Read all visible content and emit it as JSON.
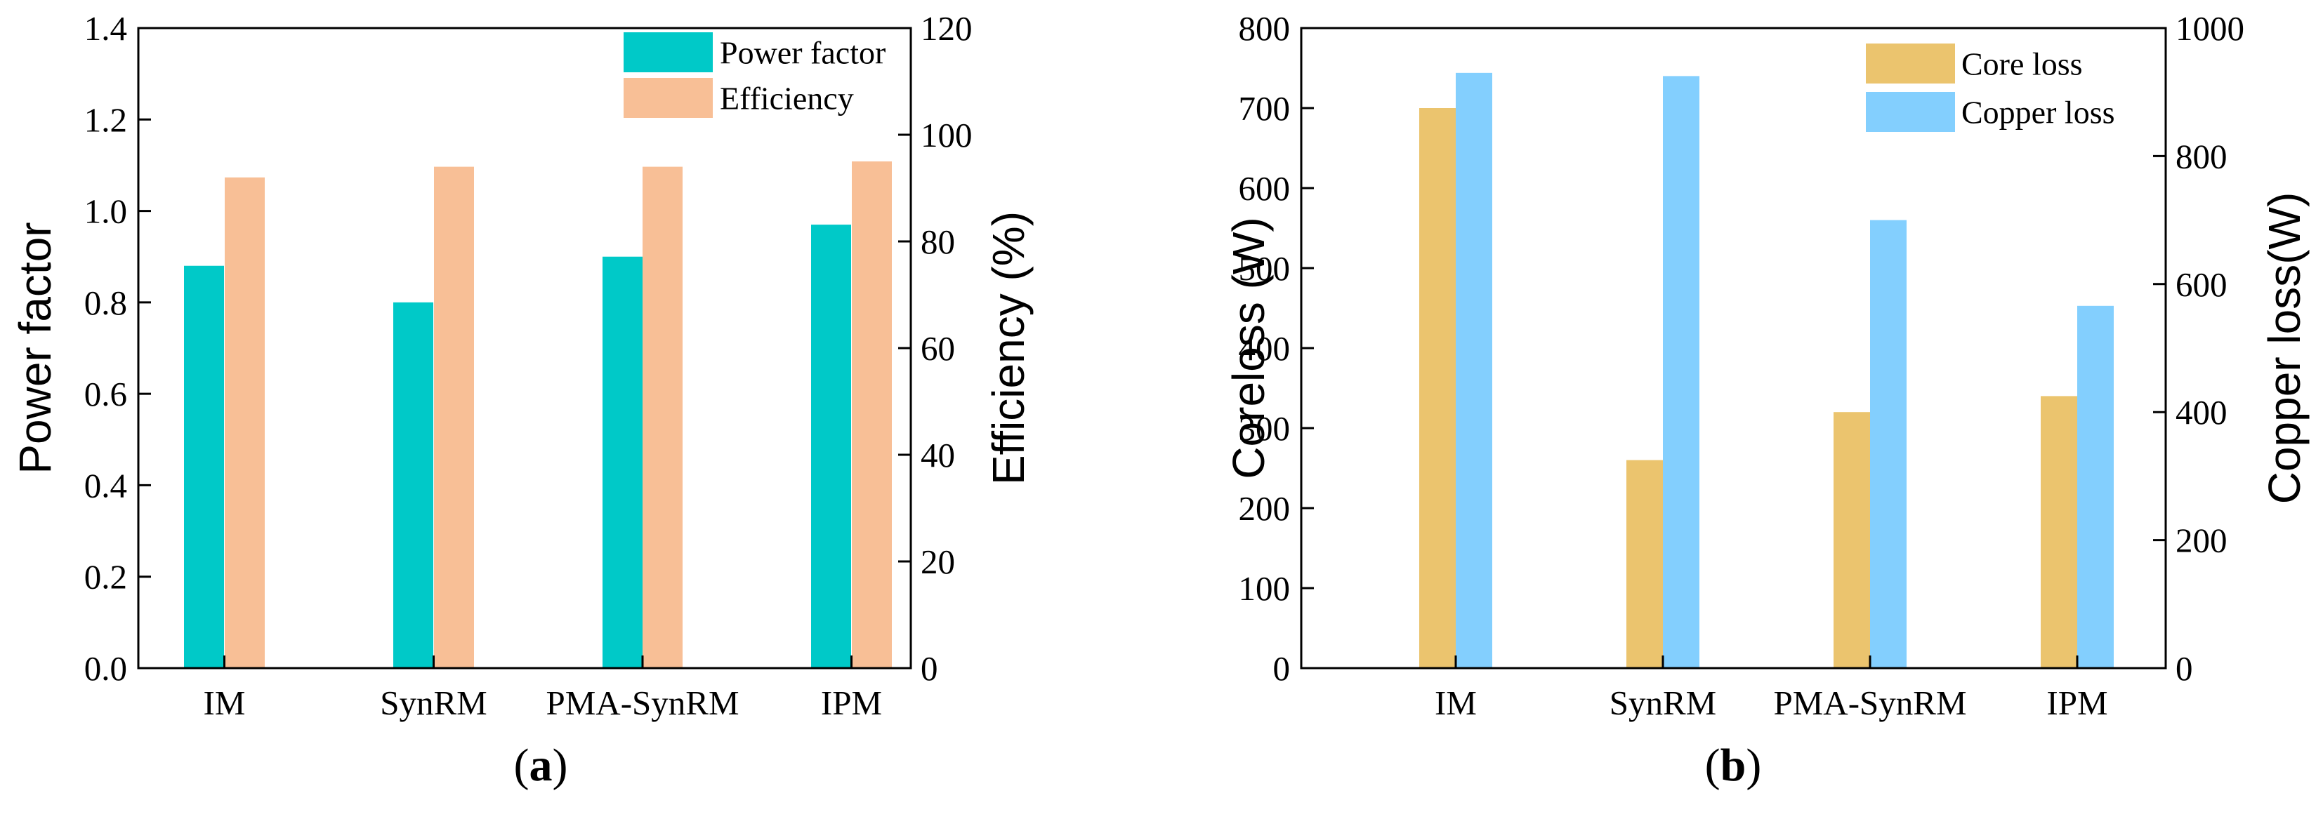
{
  "colors": {
    "power_factor": "#00c9c8",
    "efficiency": "#f8bf96",
    "core_loss": "#ebc46e",
    "copper_loss": "#83cffe"
  },
  "chart_data": [
    {
      "type": "bar",
      "caption_prefix": "(",
      "caption_letter": "a",
      "caption_suffix": ")",
      "categories": [
        "IM",
        "SynRM",
        "PMA-SynRM",
        "IPM"
      ],
      "left_axis": {
        "label": "Power factor",
        "ylim": [
          0,
          1.4
        ],
        "ticks": [
          "0.0",
          "0.2",
          "0.4",
          "0.6",
          "0.8",
          "1.0",
          "1.2",
          "1.4"
        ]
      },
      "right_axis": {
        "label": "Efficiency (%)",
        "ylim": [
          0,
          120
        ],
        "ticks": [
          "0",
          "20",
          "40",
          "60",
          "80",
          "100",
          "120"
        ]
      },
      "series": [
        {
          "name": "Power factor",
          "axis": "left",
          "values": [
            0.88,
            0.8,
            0.9,
            0.97
          ]
        },
        {
          "name": "Efficiency",
          "axis": "right",
          "values": [
            92,
            94,
            94,
            95
          ]
        }
      ],
      "legend": [
        "Power factor",
        "Efficiency"
      ],
      "legend_position": "top-right"
    },
    {
      "type": "bar",
      "caption_prefix": "(",
      "caption_letter": "b",
      "caption_suffix": ")",
      "categories": [
        "IM",
        "SynRM",
        "PMA-SynRM",
        "IPM"
      ],
      "left_axis": {
        "label": "Coreloss (W)",
        "ylim": [
          0,
          800
        ],
        "ticks": [
          "0",
          "100",
          "200",
          "300",
          "400",
          "500",
          "600",
          "700",
          "800"
        ]
      },
      "right_axis": {
        "label": "Copper loss(W)",
        "ylim": [
          0,
          1000
        ],
        "ticks": [
          "0",
          "200",
          "400",
          "600",
          "800",
          "1000"
        ]
      },
      "series": [
        {
          "name": "Core loss",
          "axis": "left",
          "values": [
            700,
            260,
            320,
            340
          ]
        },
        {
          "name": "Copper loss",
          "axis": "right",
          "values": [
            930,
            925,
            700,
            566
          ]
        }
      ],
      "legend": [
        "Core loss",
        "Copper loss"
      ],
      "legend_position": "top-right"
    }
  ]
}
